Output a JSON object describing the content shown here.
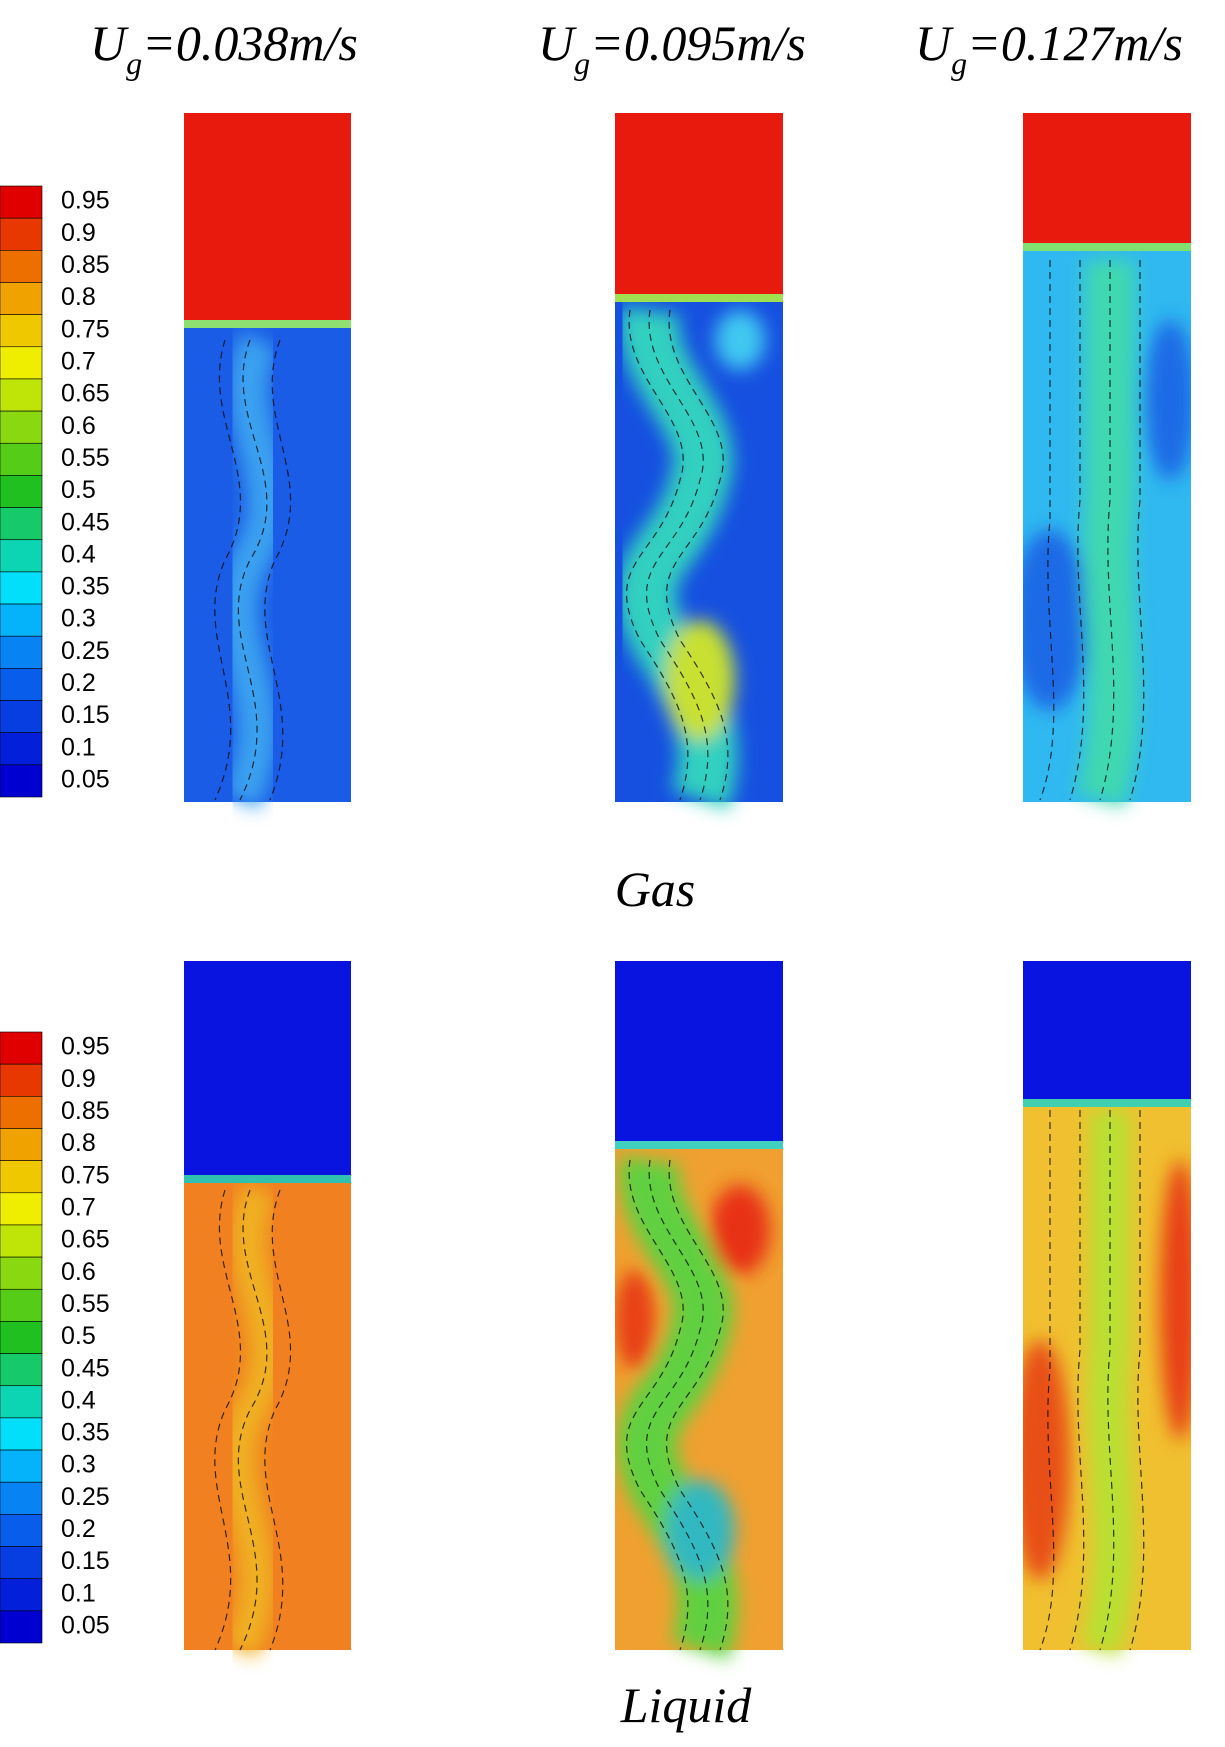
{
  "columns": [
    {
      "symbol": "U",
      "subscript": "g",
      "rest": "=0.038m/s"
    },
    {
      "symbol": "U",
      "subscript": "g",
      "rest": "=0.095m/s"
    },
    {
      "symbol": "U",
      "subscript": "g",
      "rest": "=0.127m/s"
    }
  ],
  "rows": [
    {
      "label": "Gas",
      "colorbar": {
        "levels": [
          0.95,
          0.9,
          0.85,
          0.8,
          0.75,
          0.7,
          0.65,
          0.6,
          0.55,
          0.5,
          0.45,
          0.4,
          0.35,
          0.3,
          0.25,
          0.2,
          0.15,
          0.1,
          0.05
        ]
      }
    },
    {
      "label": "Liquid",
      "colorbar": {
        "levels": [
          0.95,
          0.9,
          0.85,
          0.8,
          0.75,
          0.7,
          0.65,
          0.6,
          0.55,
          0.5,
          0.45,
          0.4,
          0.35,
          0.3,
          0.25,
          0.2,
          0.15,
          0.1,
          0.05
        ]
      }
    }
  ]
}
